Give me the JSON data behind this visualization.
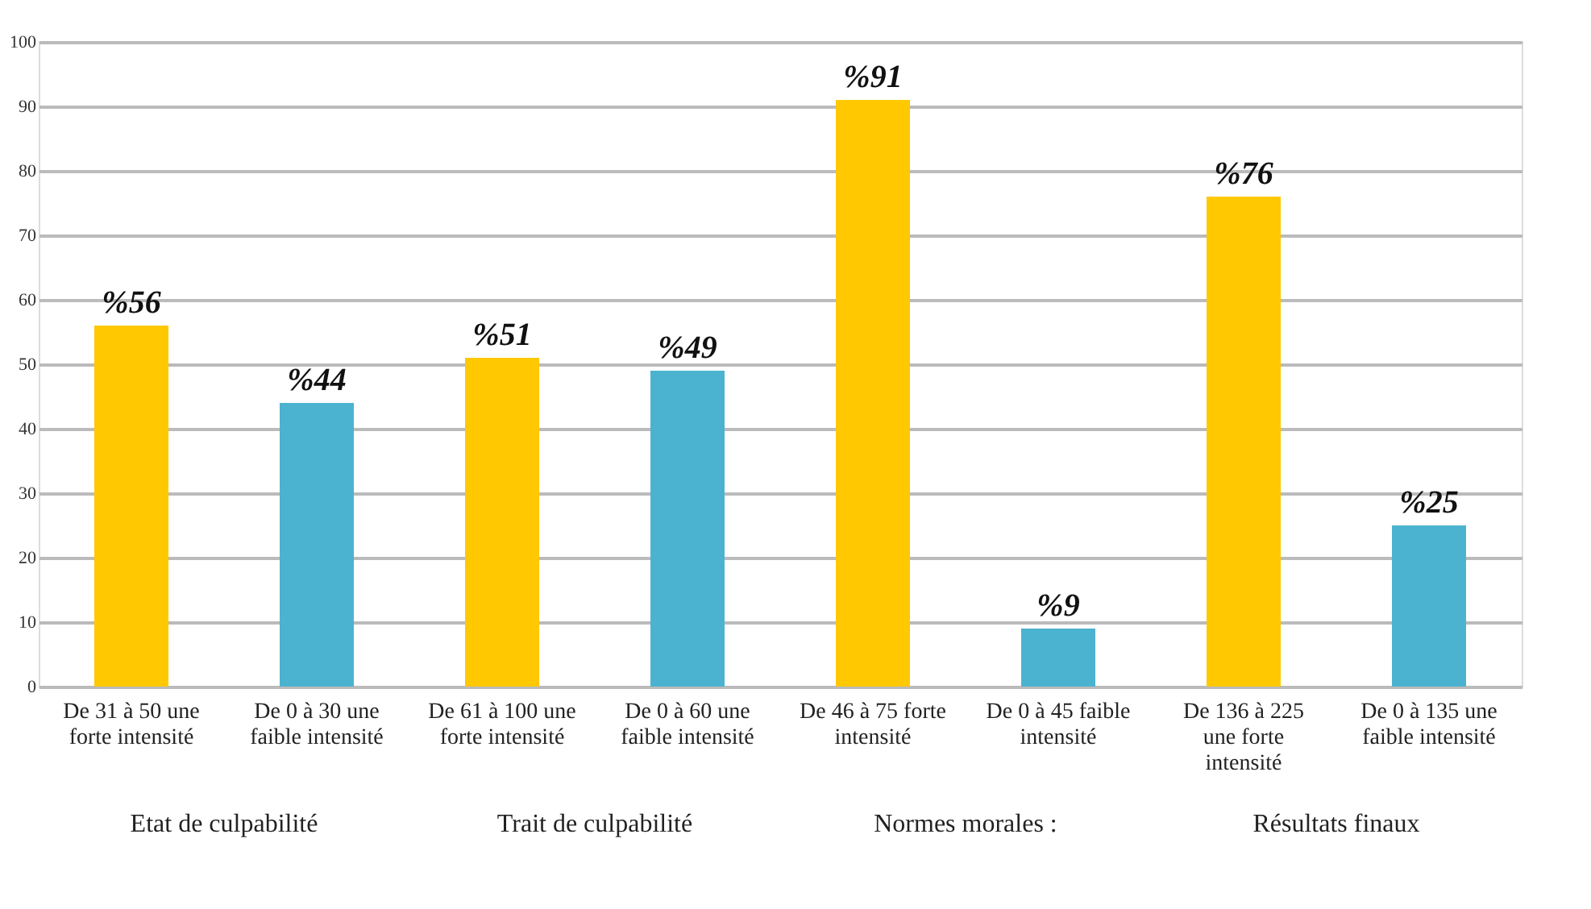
{
  "chart_data": {
    "type": "bar",
    "categories": [
      "De 31 à 50 une\nforte intensité",
      "De 0 à 30 une\nfaible intensité",
      "De 61 à 100 une\nforte intensité",
      "De 0 à 60 une\nfaible intensité",
      "De 46 à 75 forte\nintensité",
      "De 0 à 45 faible\nintensité",
      "De 136 à 225\nune forte\nintensité",
      "De 0 à 135 une\nfaible intensité"
    ],
    "values": [
      56,
      44,
      51,
      49,
      91,
      9,
      76,
      25
    ],
    "colors": [
      "#ffc800",
      "#4bb3cf",
      "#ffc800",
      "#4bb3cf",
      "#ffc800",
      "#4bb3cf",
      "#ffc800",
      "#4bb3cf"
    ],
    "value_labels": [
      "%56",
      "%44",
      "%51",
      "%49",
      "%91",
      "%9",
      "%76",
      "%25"
    ],
    "annotations": [
      "Etat de culpabilité",
      "Trait de culpabilité",
      "Normes morales :",
      "Résultats finaux"
    ],
    "ylim": [
      0,
      100
    ],
    "yticks": [
      0,
      10,
      20,
      30,
      40,
      50,
      60,
      70,
      80,
      90,
      100
    ],
    "grid": "y"
  }
}
